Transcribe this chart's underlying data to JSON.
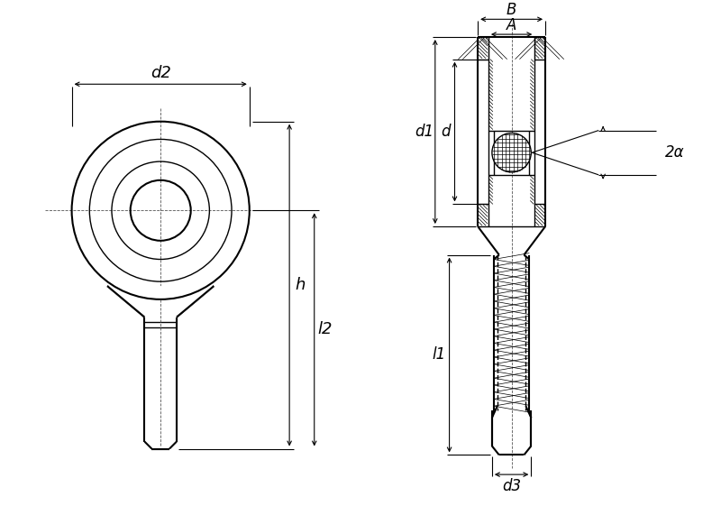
{
  "bg_color": "#ffffff",
  "line_color": "#000000",
  "fig_width": 8.0,
  "fig_height": 5.61,
  "labels": {
    "d2": "d2",
    "h": "h",
    "l2": "l2",
    "B": "B",
    "A": "A",
    "d1": "d1",
    "d": "d",
    "d3": "d3",
    "l1": "l1",
    "2alpha": "2α"
  }
}
